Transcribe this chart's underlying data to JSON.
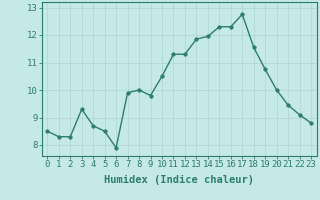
{
  "x": [
    0,
    1,
    2,
    3,
    4,
    5,
    6,
    7,
    8,
    9,
    10,
    11,
    12,
    13,
    14,
    15,
    16,
    17,
    18,
    19,
    20,
    21,
    22,
    23
  ],
  "y": [
    8.5,
    8.3,
    8.3,
    9.3,
    8.7,
    8.5,
    7.9,
    9.9,
    10.0,
    9.8,
    10.5,
    11.3,
    11.3,
    11.85,
    11.95,
    12.3,
    12.3,
    12.75,
    11.55,
    10.75,
    10.0,
    9.45,
    9.1,
    8.8
  ],
  "line_color": "#2d7d6f",
  "marker_color": "#2d7d6f",
  "bg_color": "#c5e8e8",
  "grid_color": "#afd4d4",
  "xlabel": "Humidex (Indice chaleur)",
  "ylim": [
    7.6,
    13.2
  ],
  "xlim": [
    -0.5,
    23.5
  ],
  "yticks": [
    8,
    9,
    10,
    11,
    12,
    13
  ],
  "xticks": [
    0,
    1,
    2,
    3,
    4,
    5,
    6,
    7,
    8,
    9,
    10,
    11,
    12,
    13,
    14,
    15,
    16,
    17,
    18,
    19,
    20,
    21,
    22,
    23
  ],
  "tick_color": "#2d7d6f",
  "xlabel_fontsize": 7.5,
  "tick_fontsize": 6.5,
  "linewidth": 1.0,
  "markersize": 2.5
}
